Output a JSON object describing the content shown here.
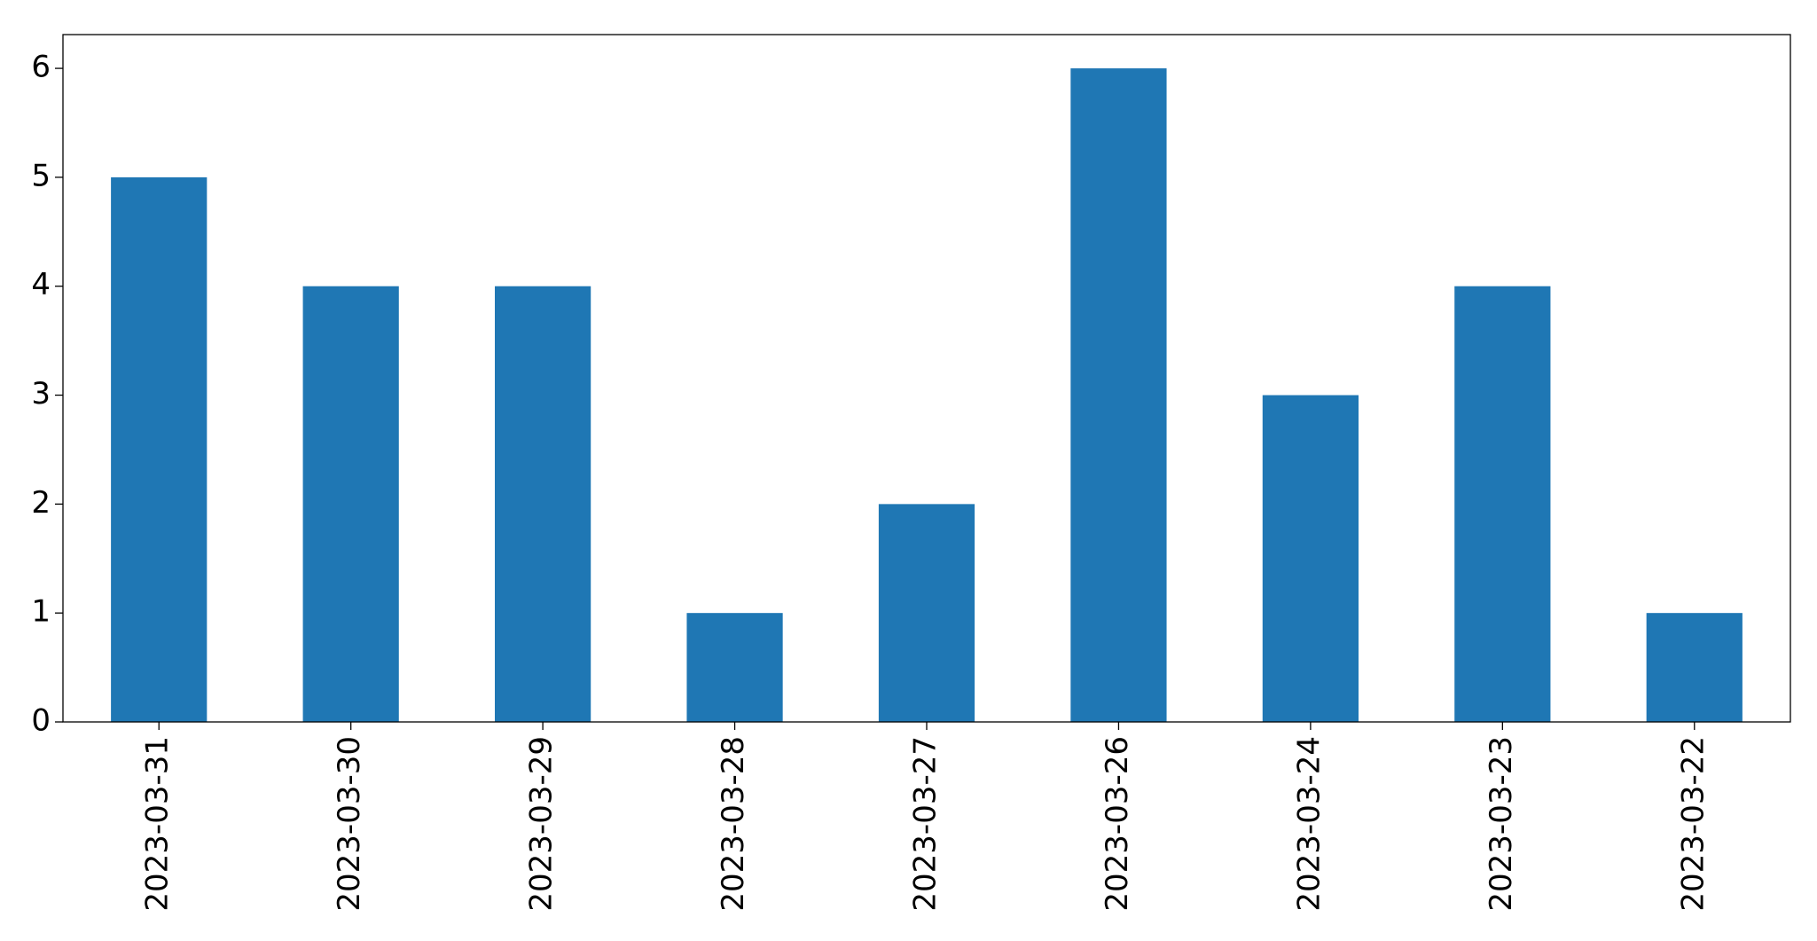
{
  "chart_data": {
    "type": "bar",
    "categories": [
      "2023-03-31",
      "2023-03-30",
      "2023-03-29",
      "2023-03-28",
      "2023-03-27",
      "2023-03-26",
      "2023-03-24",
      "2023-03-23",
      "2023-03-22"
    ],
    "values": [
      5,
      4,
      4,
      1,
      2,
      6,
      3,
      4,
      1
    ],
    "color": "#1f77b4",
    "ylim": [
      0,
      6.31
    ],
    "yticks": [
      0,
      1,
      2,
      3,
      4,
      5,
      6
    ],
    "grid": false
  }
}
